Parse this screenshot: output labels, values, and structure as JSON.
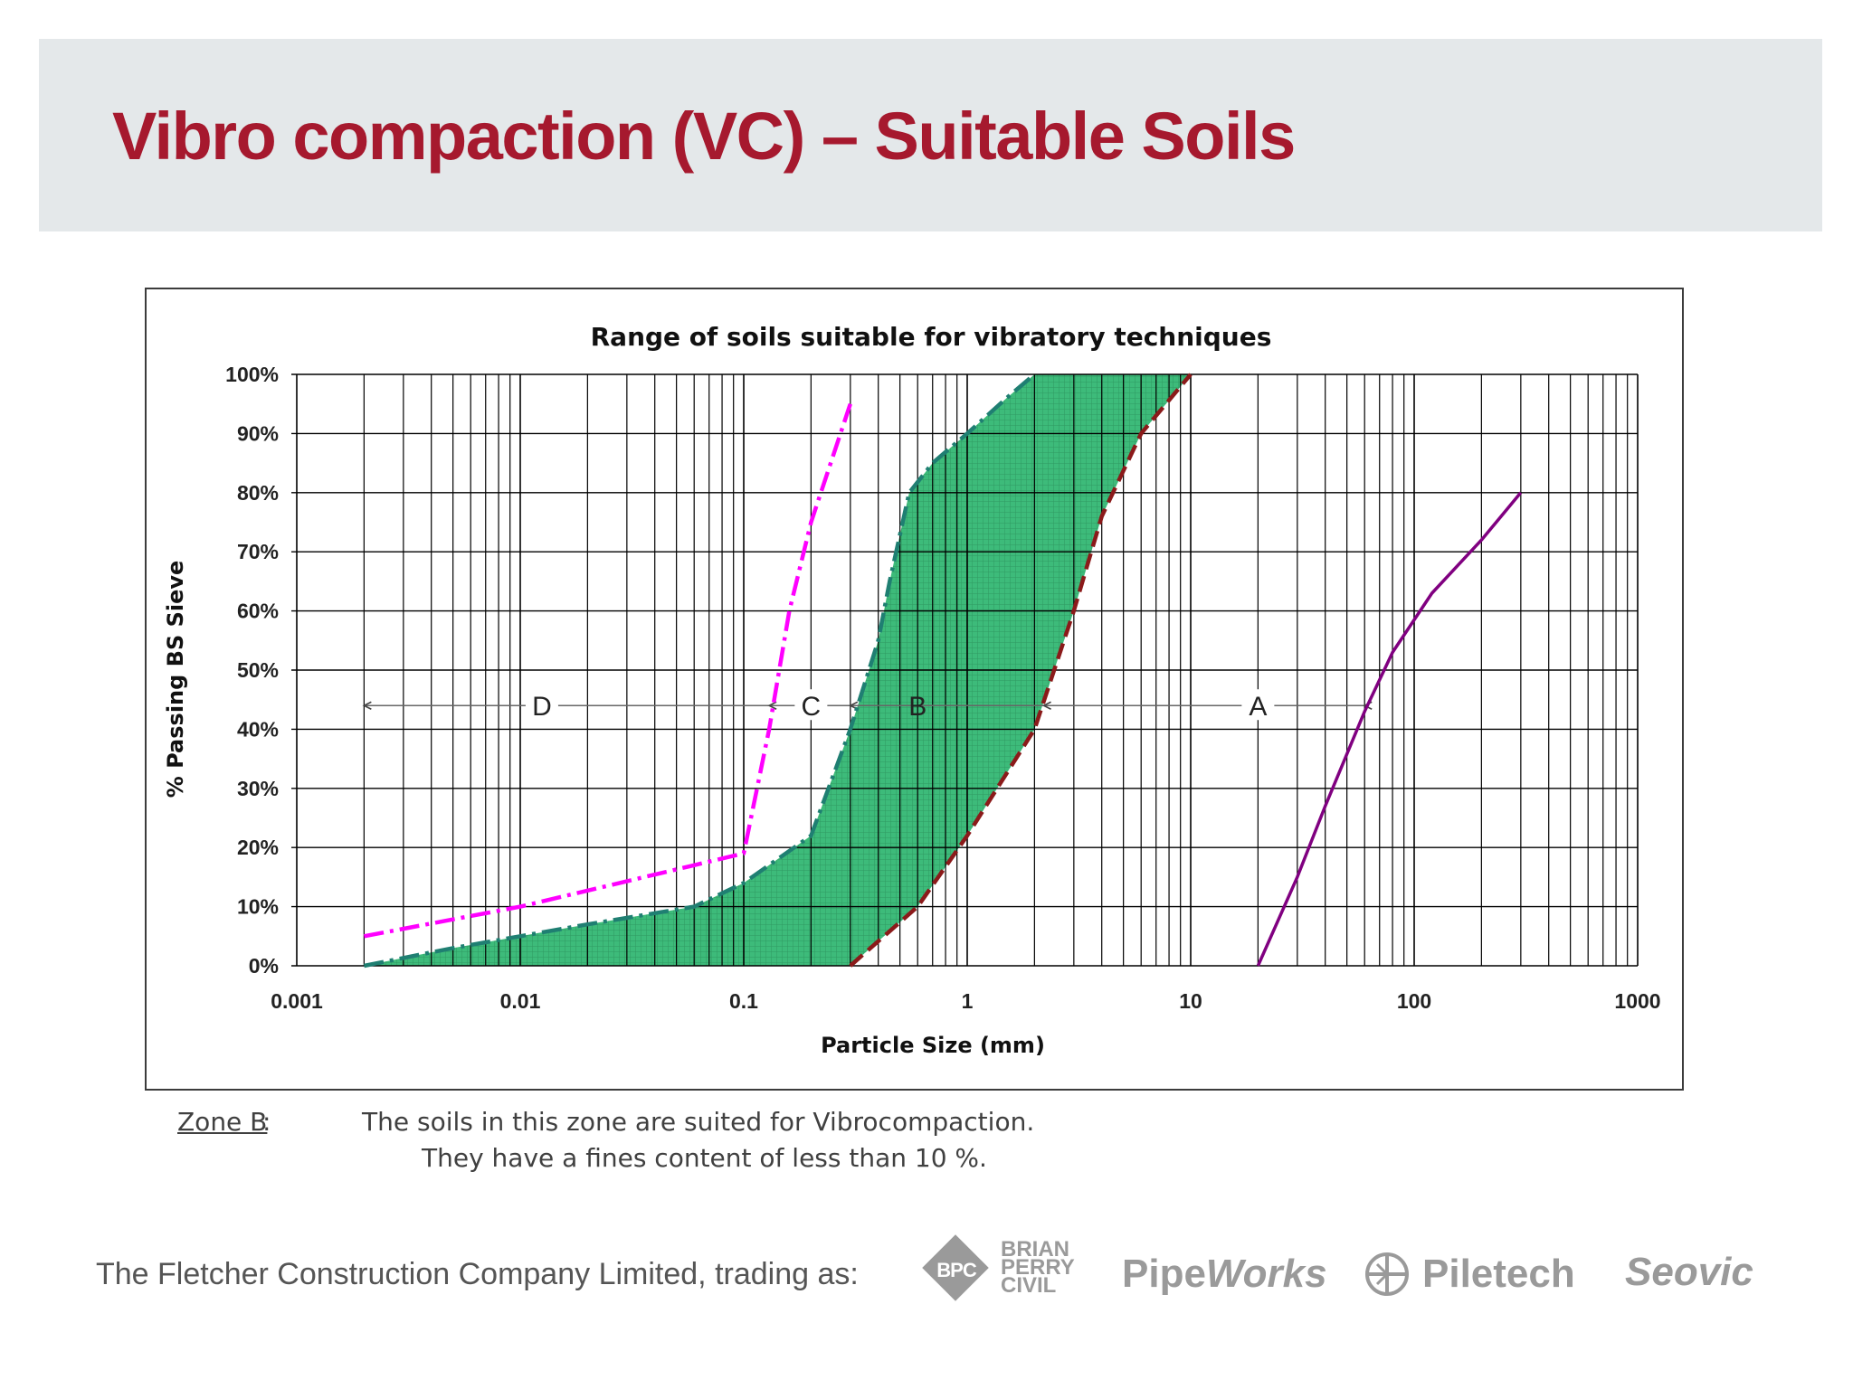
{
  "slide": {
    "title": "Vibro compaction (VC) – Suitable Soils"
  },
  "note": {
    "zone_label": "Zone B",
    "colon": ":",
    "line1": "The soils in this zone are suited for Vibrocompaction.",
    "line2": "They have a fines content of less than 10 %."
  },
  "footer": {
    "company_text": "The Fletcher Construction Company Limited, trading as:",
    "logos": {
      "bpc_mark": "BPC",
      "bpc_line1": "BRIAN",
      "bpc_line2": "PERRY",
      "bpc_line3": "CIVIL",
      "pipeworks_a": "Pipe",
      "pipeworks_b": "Works",
      "piletech": "Piletech",
      "seovic": "Seovic"
    }
  },
  "chart_data": {
    "type": "line",
    "title": "Range of soils suitable for vibratory techniques",
    "xlabel": "Particle Size (mm)",
    "ylabel": "% Passing BS Sieve",
    "x_scale": "log",
    "xlim": [
      0.001,
      1000
    ],
    "ylim": [
      0,
      100
    ],
    "x_ticks": [
      "0.001",
      "0.01",
      "0.1",
      "1",
      "10",
      "100",
      "1000"
    ],
    "y_ticks": [
      "0%",
      "10%",
      "20%",
      "30%",
      "40%",
      "50%",
      "60%",
      "70%",
      "80%",
      "90%",
      "100%"
    ],
    "grid": true,
    "fill_color": "#3dbb7a",
    "zones": {
      "labels": [
        "D",
        "C",
        "B",
        "A"
      ],
      "x": [
        0.0125,
        0.2,
        0.6,
        20
      ],
      "y": 44,
      "boundaries": [
        0.002,
        0.13,
        0.3,
        2.2,
        60
      ]
    },
    "series": [
      {
        "color": "#ff00ff",
        "style": "dashdot",
        "x": [
          0.002,
          0.01,
          0.1,
          0.13,
          0.16,
          0.2,
          0.3
        ],
        "y": [
          5,
          10,
          19,
          40,
          60,
          75,
          95
        ]
      },
      {
        "color": "#1f7f72",
        "style": "dashdot",
        "x": [
          0.002,
          0.005,
          0.01,
          0.02,
          0.06,
          0.1,
          0.2,
          0.3,
          0.4,
          0.45,
          0.55,
          0.7,
          1.0,
          1.5,
          2.0
        ],
        "y": [
          0,
          3,
          5,
          7,
          10,
          14,
          22,
          40,
          55,
          65,
          80,
          85,
          90,
          96,
          100
        ]
      },
      {
        "color": "#8b1a1a",
        "style": "dash",
        "x": [
          0.3,
          0.6,
          1.0,
          2.0,
          3.0,
          4.0,
          6.0,
          10.0
        ],
        "y": [
          0,
          10,
          22,
          40,
          60,
          76,
          90,
          100
        ]
      },
      {
        "color": "#800080",
        "style": "solid",
        "x": [
          20,
          30,
          40,
          60,
          80,
          120,
          200,
          300
        ],
        "y": [
          0,
          15,
          27,
          43,
          53,
          63,
          72,
          80
        ]
      }
    ]
  }
}
